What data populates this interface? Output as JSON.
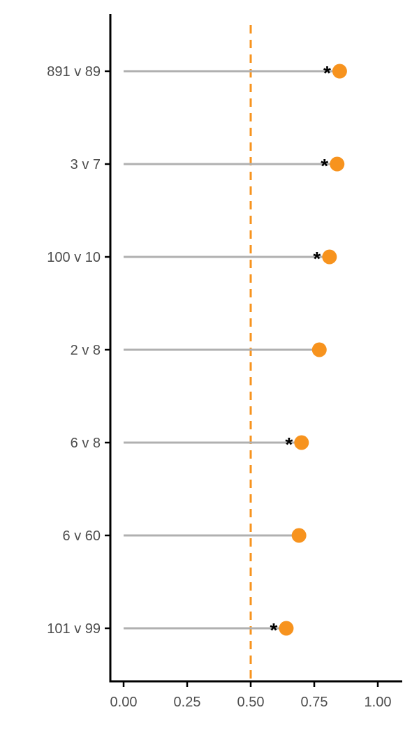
{
  "chart_data": {
    "type": "lollipop",
    "categories": [
      "891 v 89",
      "3 v 7",
      "100 v 10",
      "2 v 8",
      "6 v 8",
      "6 v 60",
      "101 v 99"
    ],
    "values": [
      0.85,
      0.84,
      0.81,
      0.77,
      0.7,
      0.69,
      0.64
    ],
    "significant": [
      true,
      true,
      true,
      false,
      true,
      false,
      true
    ],
    "significance_marker": "*",
    "reference_line": 0.5,
    "xlim": [
      0,
      1.1
    ],
    "x_ticks": [
      0.0,
      0.25,
      0.5,
      0.75,
      1.0
    ],
    "x_tick_labels": [
      "0.00",
      "0.25",
      "0.50",
      "0.75",
      "1.00"
    ],
    "title": "",
    "xlabel": "",
    "ylabel": "",
    "colors": {
      "point": "#F7931E",
      "stem": "#B0B0B0",
      "reference_line": "#F7931E",
      "axis": "#000000",
      "tick_label": "#4D4D4D"
    },
    "grid": false
  }
}
